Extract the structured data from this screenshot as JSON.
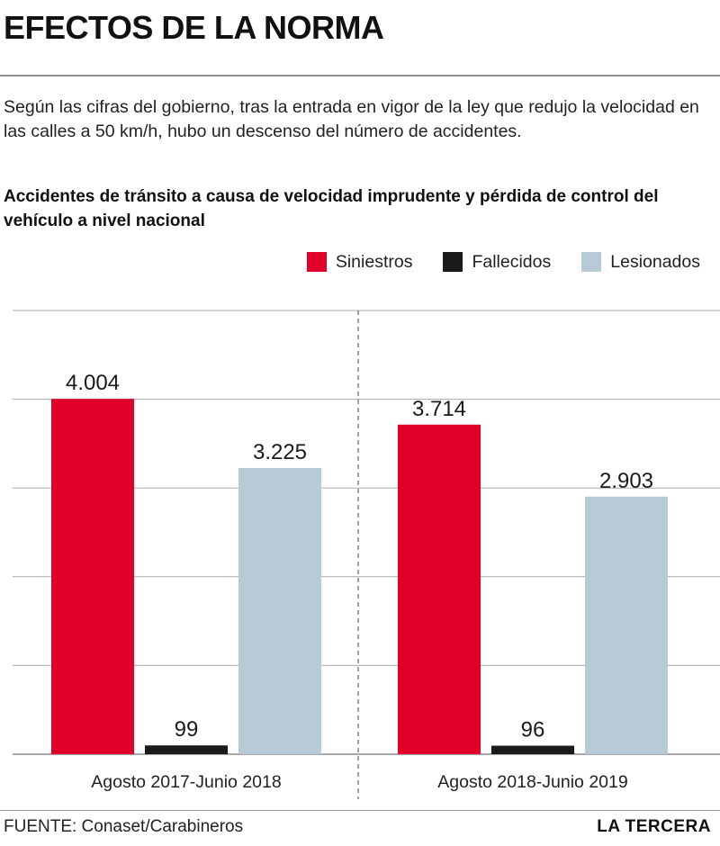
{
  "header": {
    "title": "EFECTOS DE LA NORMA",
    "intro": "Según las cifras del gobierno, tras la entrada en vigor de la ley que redujo la velocidad en las calles a 50 km/h, hubo un descenso del número de accidentes."
  },
  "footer": {
    "source": "FUENTE: Conaset/Carabineros",
    "brand": "LA TERCERA"
  },
  "chart_data": {
    "type": "bar",
    "title": "Accidentes de tránsito a causa de velocidad imprudente y pérdida de control del vehículo a nivel nacional",
    "categories": [
      "Agosto 2017-Junio 2018",
      "Agosto 2018-Junio 2019"
    ],
    "series": [
      {
        "name": "Siniestros",
        "color": "#e0002a",
        "values": [
          4004,
          3714
        ],
        "labels": [
          "4.004",
          "3.714"
        ]
      },
      {
        "name": "Fallecidos",
        "color": "#1a1a1a",
        "values": [
          99,
          96
        ],
        "labels": [
          "99",
          "96"
        ]
      },
      {
        "name": "Lesionados",
        "color": "#b7cbd6",
        "values": [
          3225,
          2903
        ],
        "labels": [
          "3.225",
          "2.903"
        ]
      }
    ],
    "ylim": [
      0,
      5000
    ],
    "grid": true,
    "gridline_values": [
      1000,
      2000,
      3000,
      4000,
      5000
    ],
    "legend_position": "top-right",
    "group_divider": "dashed"
  }
}
